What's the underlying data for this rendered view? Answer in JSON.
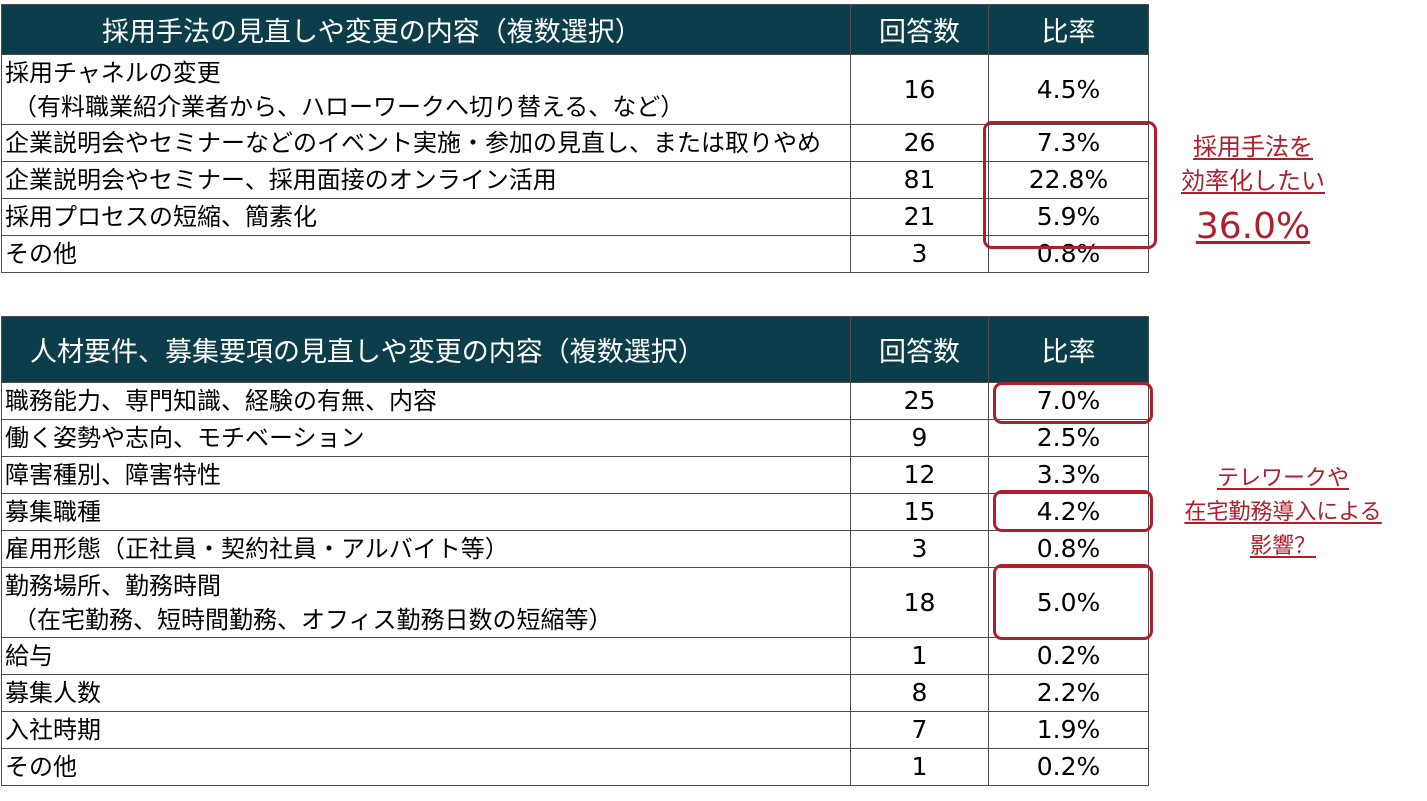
{
  "table1": {
    "title": "採用手法の見直しや変更の内容（複数選択）",
    "col_count": "回答数",
    "col_ratio": "比率",
    "rows": [
      {
        "label1": "採用チャネルの変更",
        "label2": "（有料職業紹介業者から、ハローワークへ切り替える、など）",
        "count": "16",
        "ratio": "4.5%"
      },
      {
        "label1": "企業説明会やセミナーなどのイベント実施・参加の見直し、または取りやめ",
        "count": "26",
        "ratio": "7.3%"
      },
      {
        "label1": "企業説明会やセミナー、採用面接のオンライン活用",
        "count": "81",
        "ratio": "22.8%"
      },
      {
        "label1": "採用プロセスの短縮、簡素化",
        "count": "21",
        "ratio": "5.9%"
      },
      {
        "label1": "その他",
        "count": "3",
        "ratio": "0.8%"
      }
    ]
  },
  "table2": {
    "title": "人材要件、募集要項の見直しや変更の内容（複数選択）",
    "col_count": "回答数",
    "col_ratio": "比率",
    "rows": [
      {
        "label1": "職務能力、専門知識、経験の有無、内容",
        "count": "25",
        "ratio": "7.0%"
      },
      {
        "label1": "働く姿勢や志向、モチベーション",
        "count": "9",
        "ratio": "2.5%"
      },
      {
        "label1": "障害種別、障害特性",
        "count": "12",
        "ratio": "3.3%"
      },
      {
        "label1": "募集職種",
        "count": "15",
        "ratio": "4.2%"
      },
      {
        "label1": "雇用形態（正社員・契約社員・アルバイト等）",
        "count": "3",
        "ratio": "0.8%"
      },
      {
        "label1": "勤務場所、勤務時間",
        "label2": "（在宅勤務、短時間勤務、オフィス勤務日数の短縮等）",
        "count": "18",
        "ratio": "5.0%"
      },
      {
        "label1": "給与",
        "count": "1",
        "ratio": "0.2%"
      },
      {
        "label1": "募集人数",
        "count": "8",
        "ratio": "2.2%"
      },
      {
        "label1": "入社時期",
        "count": "7",
        "ratio": "1.9%"
      },
      {
        "label1": "その他",
        "count": "1",
        "ratio": "0.2%"
      }
    ]
  },
  "annotation1": {
    "line1": "採用手法を",
    "line2": "効率化したい",
    "value": "36.0%"
  },
  "annotation2": {
    "line1": "テレワークや",
    "line2": "在宅勤務導入による",
    "line3": "影響？"
  },
  "colors": {
    "header_bg": "#0b3e4a",
    "highlight": "#b01e2b"
  }
}
